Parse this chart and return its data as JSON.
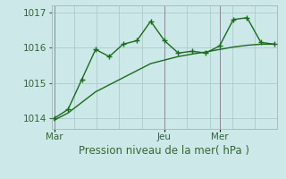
{
  "background_color": "#cce8e8",
  "grid_color": "#aacccc",
  "line_color": "#1a6b1a",
  "line1_x": [
    0,
    1,
    2,
    3,
    4,
    5,
    6,
    7,
    8,
    9,
    10,
    11,
    12,
    13,
    14,
    15,
    16
  ],
  "line1_y": [
    1014.0,
    1014.25,
    1015.1,
    1015.95,
    1015.75,
    1016.1,
    1016.2,
    1016.75,
    1016.2,
    1015.85,
    1015.9,
    1015.85,
    1016.05,
    1016.8,
    1016.85,
    1016.15,
    1016.1
  ],
  "line2_x": [
    0,
    1,
    2,
    3,
    4,
    5,
    6,
    7,
    8,
    9,
    10,
    11,
    12,
    13,
    14,
    15,
    16
  ],
  "line2_y": [
    1013.95,
    1014.15,
    1014.45,
    1014.75,
    1014.95,
    1015.15,
    1015.35,
    1015.55,
    1015.65,
    1015.75,
    1015.82,
    1015.88,
    1015.95,
    1016.02,
    1016.07,
    1016.1,
    1016.1
  ],
  "ylim": [
    1013.7,
    1017.2
  ],
  "yticks": [
    1014,
    1015,
    1016,
    1017
  ],
  "xlim": [
    -0.2,
    16.2
  ],
  "vline_positions": [
    0,
    8,
    12
  ],
  "vline_labels": [
    "Mar",
    "Jeu",
    "Mer"
  ],
  "xlabel": "Pression niveau de la mer( hPa )",
  "xlabel_fontsize": 8.5,
  "tick_fontsize": 7.5,
  "ytick_fontsize": 7.5
}
